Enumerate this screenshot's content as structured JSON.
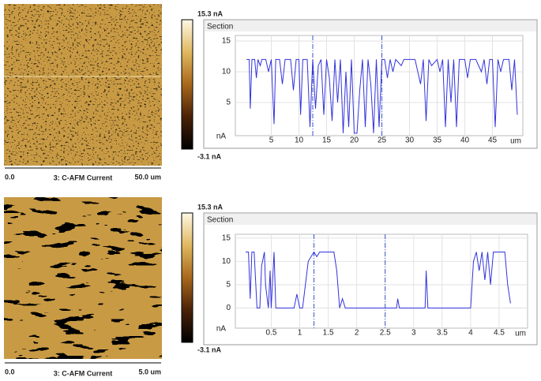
{
  "images": [
    {
      "max_label": "15.3 nA",
      "min_label": "-3.1 nA",
      "start_label": "0.0",
      "caption": "3: C-AFM Current",
      "end_label": "50.0 um"
    },
    {
      "max_label": "15.3 nA",
      "min_label": "-3.1 nA",
      "start_label": "0.0",
      "caption": "3: C-AFM Current",
      "end_label": "5.0 um"
    }
  ],
  "chart_data": [
    {
      "type": "line",
      "title": "Section",
      "ylabel": "nA",
      "xlabel": "um",
      "color": "#3333dd",
      "cursor_color": "#3355cc",
      "x": [
        0.5,
        1,
        1.2,
        1.5,
        2,
        2.3,
        2.6,
        3,
        3.3,
        4,
        4.5,
        5,
        5.5,
        5.8,
        6.5,
        7,
        7.5,
        8.5,
        9,
        9.5,
        10,
        10.3,
        10.7,
        11.5,
        12,
        12.5,
        13,
        13.5,
        14,
        14.5,
        15,
        15.5,
        16,
        16.5,
        17,
        17.5,
        18,
        18.5,
        19,
        19.5,
        20,
        20.5,
        21,
        21.5,
        22,
        22.5,
        23,
        23.5,
        24,
        24.5,
        25,
        25.5,
        26,
        26.5,
        27,
        27.5,
        28.5,
        29,
        30,
        31,
        32,
        32.5,
        33,
        33.5,
        34,
        35,
        35.5,
        36,
        36.5,
        37,
        37.5,
        38,
        38.5,
        39,
        40,
        40.5,
        41,
        42,
        43,
        43.5,
        44,
        44.5,
        45,
        45.5,
        46,
        46.5,
        47,
        48,
        48.5,
        49,
        49.5
      ],
      "values": [
        12,
        12,
        4,
        12,
        12,
        9,
        12,
        11,
        12,
        12,
        10,
        12,
        1.5,
        12,
        12,
        8,
        12,
        12,
        7,
        12,
        12,
        3,
        12,
        12,
        1,
        12,
        4,
        11,
        12,
        3,
        12,
        9,
        2,
        12,
        5,
        12,
        0,
        10,
        1,
        12,
        0,
        0,
        7,
        12,
        1,
        12,
        8,
        0,
        12,
        1,
        12,
        12,
        9,
        12,
        10,
        12,
        11,
        12,
        12,
        12,
        8,
        12,
        2,
        12,
        11,
        12,
        10,
        12,
        1,
        12,
        5,
        12,
        1,
        12,
        12,
        9,
        12,
        12,
        10,
        12,
        8,
        12,
        12,
        1,
        12,
        10,
        12,
        12,
        7,
        12,
        3
      ],
      "cursors": [
        12.5,
        25
      ],
      "xlim": [
        -1.5,
        50.5
      ],
      "ylim": [
        -0.4,
        15.9
      ],
      "xticks": [
        5,
        10,
        15,
        20,
        25,
        30,
        35,
        40,
        45
      ],
      "yticks": [
        5,
        10,
        15
      ],
      "grid": true
    },
    {
      "type": "line",
      "title": "Section",
      "ylabel": "nA",
      "xlabel": "um",
      "color": "#3333dd",
      "cursor_color": "#3355cc",
      "x": [
        0.05,
        0.1,
        0.13,
        0.16,
        0.2,
        0.25,
        0.3,
        0.33,
        0.38,
        0.4,
        0.45,
        0.48,
        0.5,
        0.55,
        0.58,
        0.65,
        0.7,
        0.8,
        0.9,
        0.95,
        1,
        1.05,
        1.1,
        1.15,
        1.2,
        1.25,
        1.3,
        1.35,
        1.4,
        1.5,
        1.6,
        1.65,
        1.7,
        1.75,
        1.8,
        1.9,
        2.5,
        2.7,
        2.72,
        2.75,
        3.2,
        3.22,
        3.25,
        4,
        4.05,
        4.1,
        4.15,
        4.2,
        4.25,
        4.3,
        4.35,
        4.4,
        4.45,
        4.5,
        4.6,
        4.65,
        4.7
      ],
      "values": [
        12,
        12,
        2,
        12,
        12,
        0,
        0,
        9,
        12,
        5,
        0,
        8,
        0,
        12,
        0,
        0,
        0,
        0,
        0,
        3,
        0,
        0,
        5,
        10,
        11,
        12,
        11,
        12,
        12,
        12,
        12,
        8,
        0,
        2,
        0,
        0,
        0,
        0,
        2,
        0,
        0,
        8,
        0,
        0,
        10,
        12,
        8,
        12,
        6,
        12,
        5,
        12,
        12,
        12,
        12,
        5,
        1
      ],
      "cursors": [
        1.25,
        2.5
      ],
      "xlim": [
        -0.13,
        5.0
      ],
      "ylim": [
        -4.3,
        15.8
      ],
      "xticks": [
        0.5,
        1,
        1.5,
        2,
        2.5,
        3,
        3.5,
        4,
        4.5
      ],
      "yticks": [
        0,
        5,
        10,
        15
      ],
      "grid": true
    }
  ]
}
